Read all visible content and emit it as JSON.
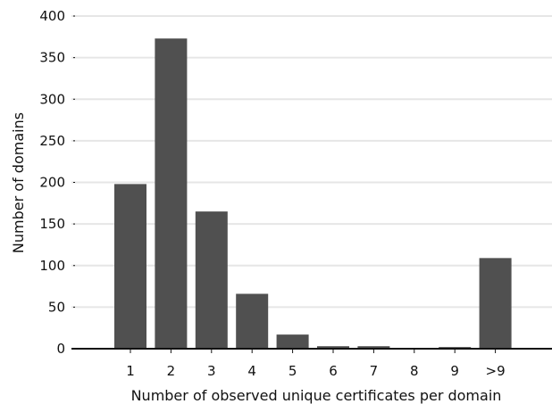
{
  "chart_data": {
    "type": "bar",
    "categories": [
      "1",
      "2",
      "3",
      "4",
      "5",
      "6",
      "7",
      "8",
      "9",
      ">9"
    ],
    "values": [
      198,
      373,
      165,
      66,
      17,
      3,
      3,
      1,
      2,
      109
    ],
    "xlabel": "Number of observed unique certificates per domain",
    "ylabel": "Number of domains",
    "ylim": [
      0,
      400
    ],
    "yticks": [
      0,
      50,
      100,
      150,
      200,
      250,
      300,
      350,
      400
    ],
    "grid": true,
    "legend": "none",
    "bar_color": "#505050",
    "grid_color": "#e6e6e6"
  }
}
